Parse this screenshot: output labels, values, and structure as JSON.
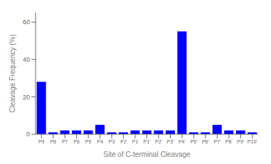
{
  "chart_data": {
    "type": "bar",
    "categories": [
      "P9",
      "P8",
      "P7",
      "P6",
      "P5",
      "P4",
      "P3",
      "P2",
      "P1",
      "P1'",
      "P2'",
      "P3'",
      "P4'",
      "P5'",
      "P6'",
      "P7'",
      "P8'",
      "P9'",
      "P10'"
    ],
    "values": [
      28,
      1,
      2,
      2,
      2,
      5,
      1,
      1,
      2,
      2,
      2,
      2,
      55,
      1,
      1,
      5,
      2,
      2,
      1
    ],
    "color": "#0000FF",
    "xlabel": "Site of C-terminal Cleavage",
    "ylabel": "Cleavage Frequency (%)",
    "ylim": [
      0,
      65
    ],
    "yticks": [
      0,
      20,
      40,
      60
    ],
    "grid": false
  }
}
